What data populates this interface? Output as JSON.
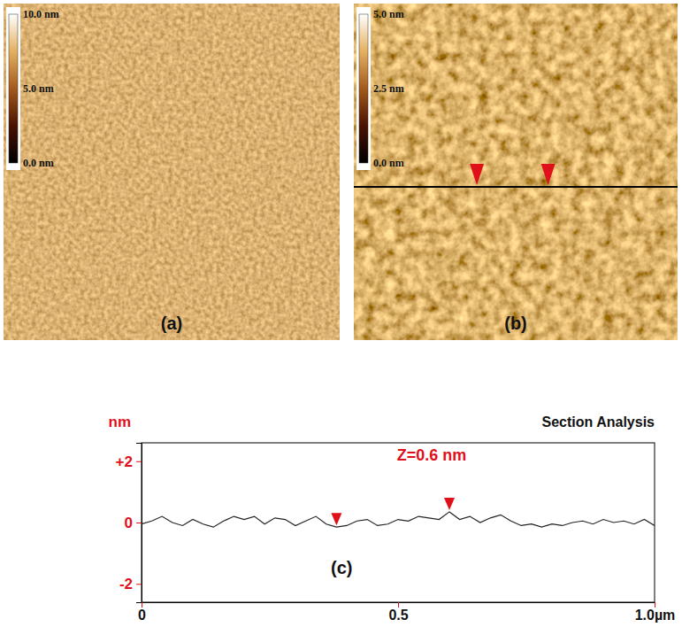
{
  "chart_data": [
    {
      "type": "afm_image",
      "label": "(a)",
      "colorbar_range": [
        0,
        10
      ],
      "colorbar_ticks": [
        {
          "value": 10,
          "label": "10.0 nm"
        },
        {
          "value": 5,
          "label": "5.0 nm"
        },
        {
          "value": 0,
          "label": "0.0 nm"
        }
      ]
    },
    {
      "type": "afm_image",
      "label": "(b)",
      "colorbar_range": [
        0,
        5
      ],
      "colorbar_ticks": [
        {
          "value": 5,
          "label": "5.0 nm"
        },
        {
          "value": 2.5,
          "label": "2.5 nm"
        },
        {
          "value": 0,
          "label": "0.0 nm"
        }
      ]
    },
    {
      "type": "line",
      "title": "Section Analysis",
      "ylabel": "nm",
      "label": "(c)",
      "annotation": "Z=0.6 nm",
      "x": [
        0,
        0.02,
        0.04,
        0.06,
        0.08,
        0.1,
        0.12,
        0.14,
        0.16,
        0.18,
        0.2,
        0.22,
        0.24,
        0.26,
        0.28,
        0.3,
        0.32,
        0.34,
        0.36,
        0.38,
        0.4,
        0.42,
        0.44,
        0.46,
        0.48,
        0.5,
        0.52,
        0.54,
        0.56,
        0.58,
        0.6,
        0.62,
        0.64,
        0.66,
        0.68,
        0.7,
        0.72,
        0.74,
        0.76,
        0.78,
        0.8,
        0.82,
        0.84,
        0.86,
        0.88,
        0.9,
        0.92,
        0.94,
        0.96,
        0.98,
        1.0
      ],
      "values": [
        -0.05,
        0.05,
        0.2,
        0.0,
        -0.1,
        0.1,
        -0.05,
        -0.15,
        0.05,
        0.2,
        0.1,
        0.2,
        -0.05,
        0.15,
        0.1,
        -0.1,
        0.05,
        0.2,
        -0.05,
        -0.15,
        -0.1,
        0.05,
        0.1,
        -0.1,
        -0.05,
        0.1,
        0.05,
        0.2,
        0.15,
        0.1,
        0.35,
        0.1,
        0.2,
        0.0,
        0.15,
        0.25,
        0.05,
        -0.1,
        -0.05,
        -0.15,
        -0.05,
        -0.1,
        0.0,
        0.05,
        -0.05,
        0.1,
        0.0,
        0.05,
        -0.05,
        0.1,
        -0.1
      ],
      "color": "#222222",
      "cursors": {
        "x": [
          0.38,
          0.6
        ],
        "y": [
          -0.15,
          0.35
        ]
      },
      "xlim": [
        0,
        1.0
      ],
      "xticks": [
        0,
        0.5,
        {
          "value": 1.0,
          "label": "1.0µm"
        }
      ],
      "ylim": [
        -2.6,
        2.6
      ],
      "yticks": [
        {
          "value": 2,
          "label": "+2"
        },
        0,
        -2
      ]
    }
  ]
}
